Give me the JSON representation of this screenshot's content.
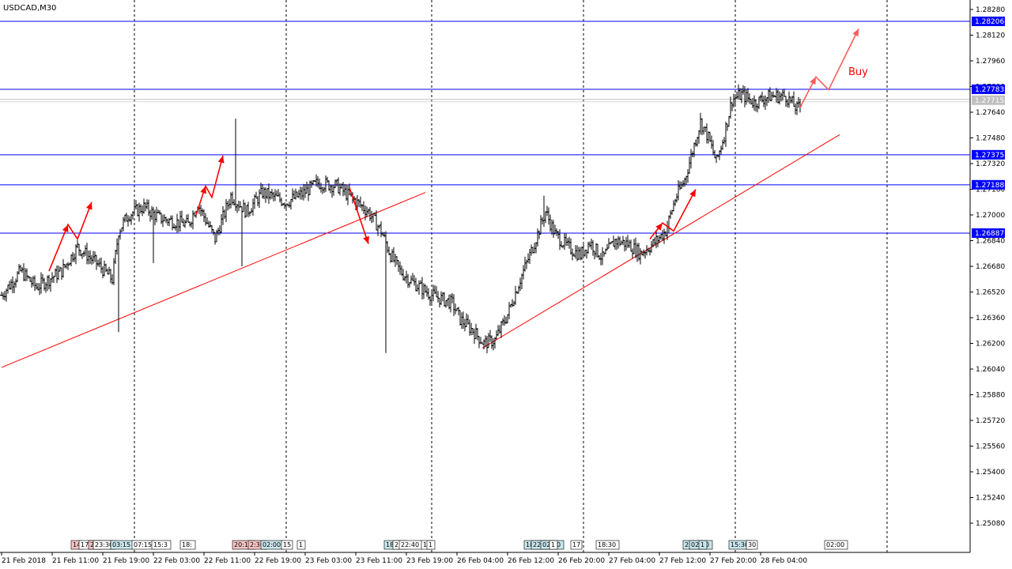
{
  "window": {
    "symbol_label": "USDCAD,M30"
  },
  "colors": {
    "candles": "#000000",
    "level_lines": "#0000ff",
    "level_label_bg": "#0000ff",
    "current_price_label_bg": "#c0c0c0",
    "trendlines": "#ff0000",
    "arrows": "#ff0000",
    "buy_text": "#ff0000",
    "grid": "#000000"
  },
  "annotation": {
    "buy_text": "Buy"
  },
  "event_labels": [
    "14",
    "17:00",
    "20:45",
    "23:30",
    "03:15",
    "07:15",
    "15:3",
    "18:",
    "20:13",
    "2:30",
    "02:00",
    "15",
    "1",
    "18:00",
    "2",
    "22:40",
    "15",
    "1",
    "18:30",
    "22:15",
    "02:00",
    "1",
    "17",
    "18:30",
    "23:3",
    "02:00",
    "1",
    "15:30",
    "30",
    "02:00"
  ],
  "chart_data": {
    "type": "candlestick",
    "title": "USDCAD,M30",
    "timeframe": "M30",
    "x_ticks": [
      "21 Feb 2018",
      "21 Feb 11:00",
      "21 Feb 19:00",
      "22 Feb 03:00",
      "22 Feb 11:00",
      "22 Feb 19:00",
      "23 Feb 03:00",
      "23 Feb 11:00",
      "23 Feb 19:00",
      "26 Feb 04:00",
      "26 Feb 12:00",
      "26 Feb 20:00",
      "27 Feb 04:00",
      "27 Feb 12:00",
      "27 Feb 20:00",
      "28 Feb 04:00"
    ],
    "y_ticks": [
      "1.28280",
      "1.28120",
      "1.27960",
      "1.27800",
      "1.27640",
      "1.27480",
      "1.27320",
      "1.27160",
      "1.27000",
      "1.26840",
      "1.26680",
      "1.26520",
      "1.26360",
      "1.26200",
      "1.26040",
      "1.25880",
      "1.25720",
      "1.25560",
      "1.25400",
      "1.25240",
      "1.25080"
    ],
    "ylim": [
      1.25,
      1.2834
    ],
    "grid": "vertical dashed lines at session separators",
    "horizontal_levels": [
      {
        "price": 1.28206,
        "label": "1.28206"
      },
      {
        "price": 1.27783,
        "label": "1.27783"
      },
      {
        "price": 1.27375,
        "label": "1.27375"
      },
      {
        "price": 1.27188,
        "label": "1.27188"
      },
      {
        "price": 1.26887,
        "label": "1.26887"
      }
    ],
    "current_price": {
      "price": 1.27715,
      "label": "1.27715"
    },
    "trendlines": [
      {
        "from": [
          0,
          1.2605
        ],
        "to": [
          268,
          1.2714
        ]
      },
      {
        "from": [
          304,
          1.2617
        ],
        "to": [
          530,
          1.275
        ]
      }
    ],
    "arrows": [
      {
        "points": [
          [
            30,
            1.2665
          ],
          [
            42,
            1.2694
          ],
          [
            48,
            1.2685
          ],
          [
            57,
            1.2708
          ]
        ]
      },
      {
        "points": [
          [
            123,
            1.27
          ],
          [
            129,
            1.2718
          ],
          [
            133,
            1.2711
          ],
          [
            140,
            1.2737
          ]
        ]
      },
      {
        "points": [
          [
            220,
            1.2717
          ],
          [
            232,
            1.2682
          ]
        ]
      },
      {
        "points": [
          [
            410,
            1.2685
          ],
          [
            418,
            1.2695
          ],
          [
            425,
            1.269
          ],
          [
            439,
            1.2716
          ]
        ]
      },
      {
        "points": [
          [
            505,
            1.2767
          ],
          [
            515,
            1.2786
          ],
          [
            523,
            1.2778
          ],
          [
            542,
            1.2816
          ]
        ]
      }
    ],
    "candles": {
      "x_first": 2,
      "x_step": 2.0,
      "anchors": [
        [
          0,
          1.265
        ],
        [
          12,
          1.2665
        ],
        [
          22,
          1.2655
        ],
        [
          30,
          1.266
        ],
        [
          38,
          1.2665
        ],
        [
          48,
          1.268
        ],
        [
          60,
          1.267
        ],
        [
          70,
          1.266
        ],
        [
          74,
          1.269
        ],
        [
          80,
          1.27
        ],
        [
          90,
          1.2705
        ],
        [
          100,
          1.2698
        ],
        [
          118,
          1.2694
        ],
        [
          124,
          1.2707
        ],
        [
          135,
          1.2685
        ],
        [
          145,
          1.2712
        ],
        [
          155,
          1.2702
        ],
        [
          165,
          1.2714
        ],
        [
          180,
          1.2708
        ],
        [
          190,
          1.2713
        ],
        [
          200,
          1.272
        ],
        [
          212,
          1.2718
        ],
        [
          222,
          1.271
        ],
        [
          232,
          1.2702
        ],
        [
          240,
          1.269
        ],
        [
          246,
          1.2675
        ],
        [
          252,
          1.2665
        ],
        [
          260,
          1.2658
        ],
        [
          272,
          1.265
        ],
        [
          285,
          1.2645
        ],
        [
          290,
          1.2635
        ],
        [
          298,
          1.2628
        ],
        [
          305,
          1.262
        ],
        [
          312,
          1.2622
        ],
        [
          320,
          1.2638
        ],
        [
          328,
          1.266
        ],
        [
          336,
          1.268
        ],
        [
          344,
          1.2702
        ],
        [
          350,
          1.2688
        ],
        [
          358,
          1.268
        ],
        [
          366,
          1.2675
        ],
        [
          372,
          1.2683
        ],
        [
          380,
          1.2673
        ],
        [
          388,
          1.2684
        ],
        [
          396,
          1.2682
        ],
        [
          404,
          1.2676
        ],
        [
          412,
          1.2682
        ],
        [
          420,
          1.269
        ],
        [
          426,
          1.271
        ],
        [
          432,
          1.2722
        ],
        [
          437,
          1.274
        ],
        [
          442,
          1.2758
        ],
        [
          447,
          1.2748
        ],
        [
          452,
          1.2733
        ],
        [
          457,
          1.275
        ],
        [
          462,
          1.2772
        ],
        [
          468,
          1.2775
        ],
        [
          476,
          1.277
        ],
        [
          486,
          1.2774
        ],
        [
          496,
          1.2774
        ],
        [
          503,
          1.2766
        ],
        [
          508,
          1.2771
        ]
      ],
      "spikes": [
        [
          74,
          "low",
          1.2627
        ],
        [
          96,
          "low",
          1.267
        ],
        [
          148,
          "high",
          1.276
        ],
        [
          152,
          "low",
          1.2668
        ],
        [
          243,
          "low",
          1.2614
        ],
        [
          343,
          "high",
          1.2712
        ]
      ]
    }
  }
}
